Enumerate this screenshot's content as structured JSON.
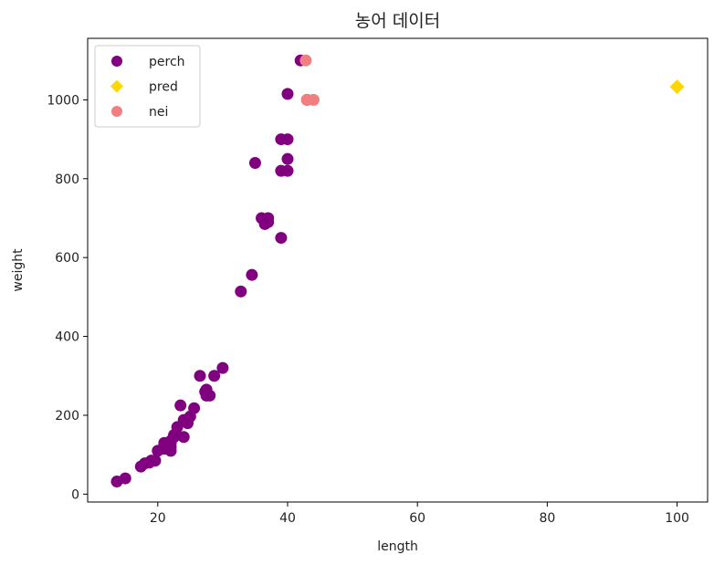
{
  "chart_data": {
    "type": "scatter",
    "title": "농어 데이터",
    "xlabel": "length",
    "ylabel": "weight",
    "xlim": [
      9.2,
      104.7
    ],
    "ylim": [
      -20,
      1156
    ],
    "xticks": [
      20,
      40,
      60,
      80,
      100
    ],
    "yticks": [
      0,
      200,
      400,
      600,
      800,
      1000
    ],
    "grid": false,
    "legend_position": "top-left",
    "series": [
      {
        "name": "perch",
        "marker": "circle",
        "color": "#800080",
        "points": [
          [
            13.7,
            32
          ],
          [
            15.0,
            40
          ],
          [
            17.4,
            70
          ],
          [
            18.0,
            78
          ],
          [
            18.7,
            80
          ],
          [
            19.0,
            85
          ],
          [
            19.6,
            85
          ],
          [
            20.0,
            110
          ],
          [
            21.0,
            115
          ],
          [
            21.0,
            125
          ],
          [
            21.0,
            130
          ],
          [
            21.3,
            120
          ],
          [
            22.0,
            120
          ],
          [
            22.0,
            130
          ],
          [
            22.0,
            135
          ],
          [
            22.0,
            110
          ],
          [
            22.0,
            130
          ],
          [
            22.5,
            150
          ],
          [
            22.5,
            145
          ],
          [
            22.7,
            150
          ],
          [
            23.0,
            170
          ],
          [
            23.5,
            225
          ],
          [
            24.0,
            145
          ],
          [
            24.0,
            188
          ],
          [
            24.6,
            180
          ],
          [
            25.0,
            197
          ],
          [
            25.6,
            218
          ],
          [
            26.5,
            300
          ],
          [
            27.3,
            260
          ],
          [
            27.5,
            265
          ],
          [
            27.5,
            250
          ],
          [
            28.0,
            250
          ],
          [
            28.7,
            300
          ],
          [
            30.0,
            320
          ],
          [
            32.8,
            514
          ],
          [
            34.5,
            556
          ],
          [
            35.0,
            840
          ],
          [
            36.5,
            685
          ],
          [
            36.0,
            700
          ],
          [
            37.0,
            700
          ],
          [
            37.0,
            690
          ],
          [
            39.0,
            900
          ],
          [
            39.0,
            650
          ],
          [
            39.0,
            820
          ],
          [
            40.0,
            850
          ],
          [
            40.0,
            900
          ],
          [
            40.0,
            1015
          ],
          [
            40.0,
            820
          ],
          [
            42.0,
            1100
          ],
          [
            43.0,
            1000
          ]
        ]
      },
      {
        "name": "pred",
        "marker": "diamond",
        "color": "#FFD700",
        "points": [
          [
            100,
            1033
          ]
        ]
      },
      {
        "name": "nei",
        "marker": "circle",
        "color": "#F08080",
        "points": [
          [
            42.8,
            1100
          ],
          [
            43.0,
            1000
          ],
          [
            44.0,
            1000
          ]
        ]
      }
    ]
  }
}
